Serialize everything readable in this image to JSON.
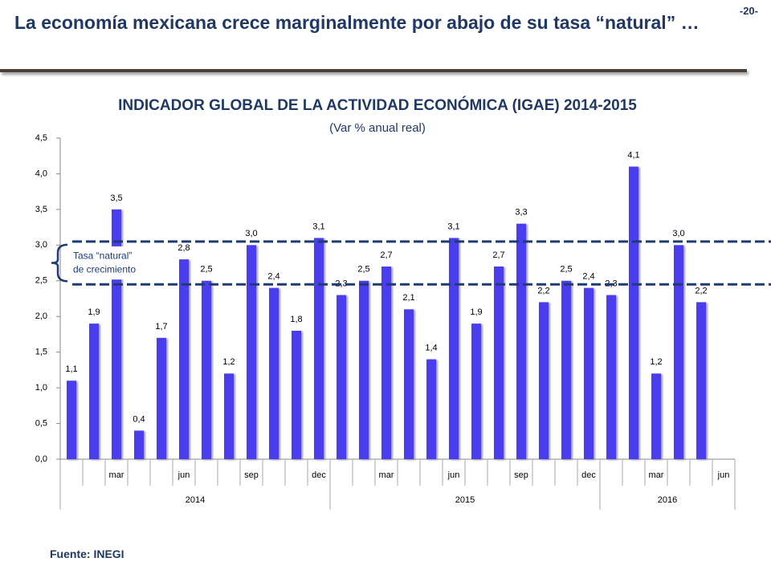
{
  "page": {
    "title": "La economía mexicana crece marginalmente por abajo de su tasa “natural” …",
    "page_number": "-20-",
    "source": "Fuente: INEGI"
  },
  "chart_data": {
    "type": "bar",
    "title": "INDICADOR GLOBAL DE LA ACTIVIDAD ECONÓMICA (IGAE) 2014-2015",
    "subtitle": "(Var % anual real)",
    "categories": [
      null,
      null,
      "mar",
      null,
      null,
      "jun",
      null,
      null,
      "sep",
      null,
      null,
      "dec",
      null,
      null,
      "mar",
      null,
      null,
      "jun",
      null,
      null,
      "sep",
      null,
      null,
      "dec",
      null,
      null,
      "mar",
      null,
      null,
      "jun"
    ],
    "years": [
      "2014",
      "2015",
      "2016"
    ],
    "values": [
      1.1,
      1.9,
      3.5,
      0.4,
      1.7,
      2.8,
      2.5,
      1.2,
      3.0,
      2.4,
      1.8,
      3.1,
      2.3,
      2.5,
      2.7,
      2.1,
      1.4,
      3.1,
      1.9,
      2.7,
      3.3,
      2.2,
      2.5,
      2.4,
      2.3,
      4.1,
      1.2,
      3.0,
      2.2,
      null
    ],
    "value_labels": [
      "1,1",
      "1,9",
      "3,5",
      "0,4",
      "1,7",
      "2,8",
      "2,5",
      "1,2",
      "3,0",
      "2,4",
      "1,8",
      "3,1",
      "2,3",
      "2,5",
      "2,7",
      "2,1",
      "1,4",
      "3,1",
      "1,9",
      "2,7",
      "3,3",
      "2,2",
      "2,5",
      "2,4",
      "2,3",
      "4,1",
      "1,2",
      "3,0",
      "2,2",
      null
    ],
    "color": "#4a3ded",
    "ylim": [
      0,
      4.5
    ],
    "yticks": [
      {
        "value": 0,
        "label": "0,0"
      },
      {
        "value": 0.5,
        "label": "0,5"
      },
      {
        "value": 1,
        "label": "1,0"
      },
      {
        "value": 1.5,
        "label": "1,5"
      },
      {
        "value": 2,
        "label": "2,0"
      },
      {
        "value": 2.5,
        "label": "2,5"
      },
      {
        "value": 3,
        "label": "3,0"
      },
      {
        "value": 3.5,
        "label": "3,5"
      },
      {
        "value": 4,
        "label": "4,0"
      },
      {
        "value": 4.5,
        "label": "4,5"
      }
    ],
    "reference_lines": [
      {
        "value": 3.05
      },
      {
        "value": 2.45
      }
    ],
    "reference_color": "#1f3b73",
    "annotation": [
      "Tasa “natural”",
      "de crecimiento"
    ]
  }
}
